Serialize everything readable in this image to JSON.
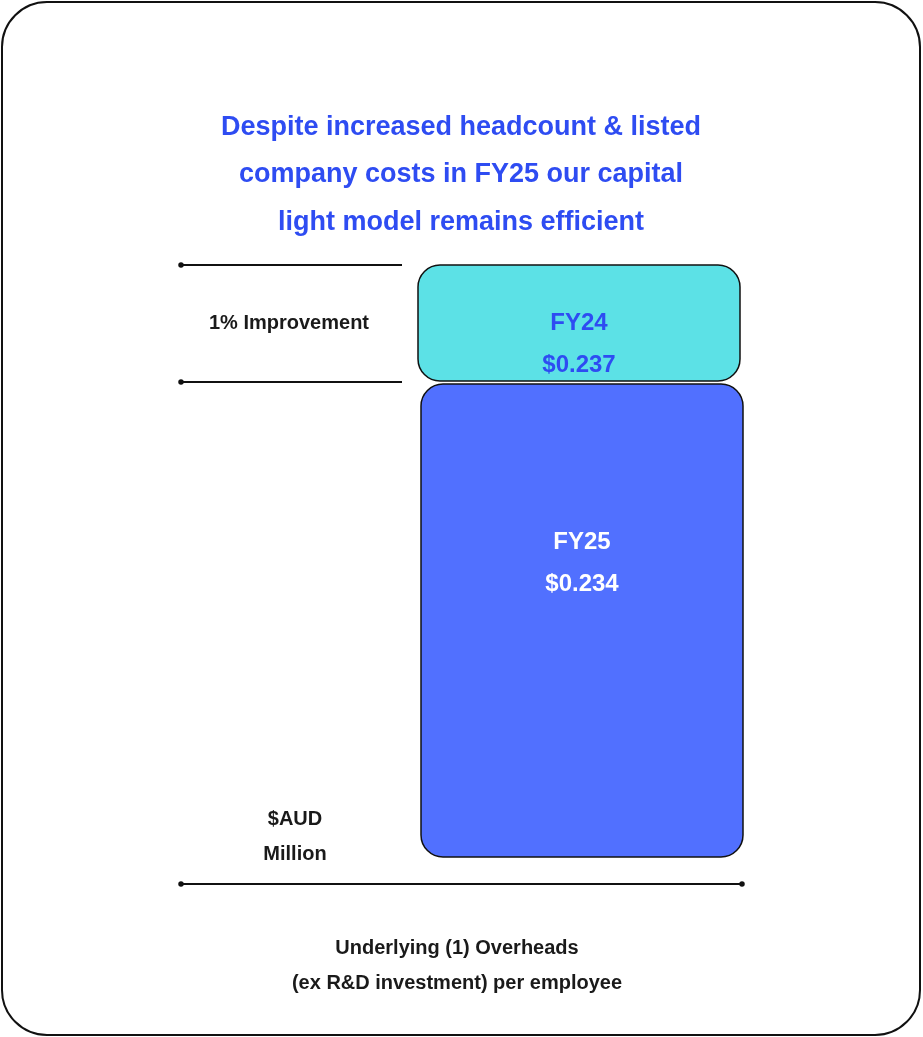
{
  "chart_data": {
    "type": "other",
    "title": "Despite increased headcount & listed\ncompany costs in FY25 our capital\nlight model remains efficient",
    "categories": [
      "FY24",
      "FY25"
    ],
    "values": [
      0.237,
      0.234
    ],
    "value_labels": [
      "$0.237",
      "$0.234"
    ],
    "colors": [
      "#5ce1e6",
      "#5170ff"
    ],
    "ylabel": "$AUD\nMillion",
    "xlabel": "Underlying (1) Overheads\n(ex R&D investment) per employee",
    "annotations": [
      "1% Improvement"
    ]
  }
}
